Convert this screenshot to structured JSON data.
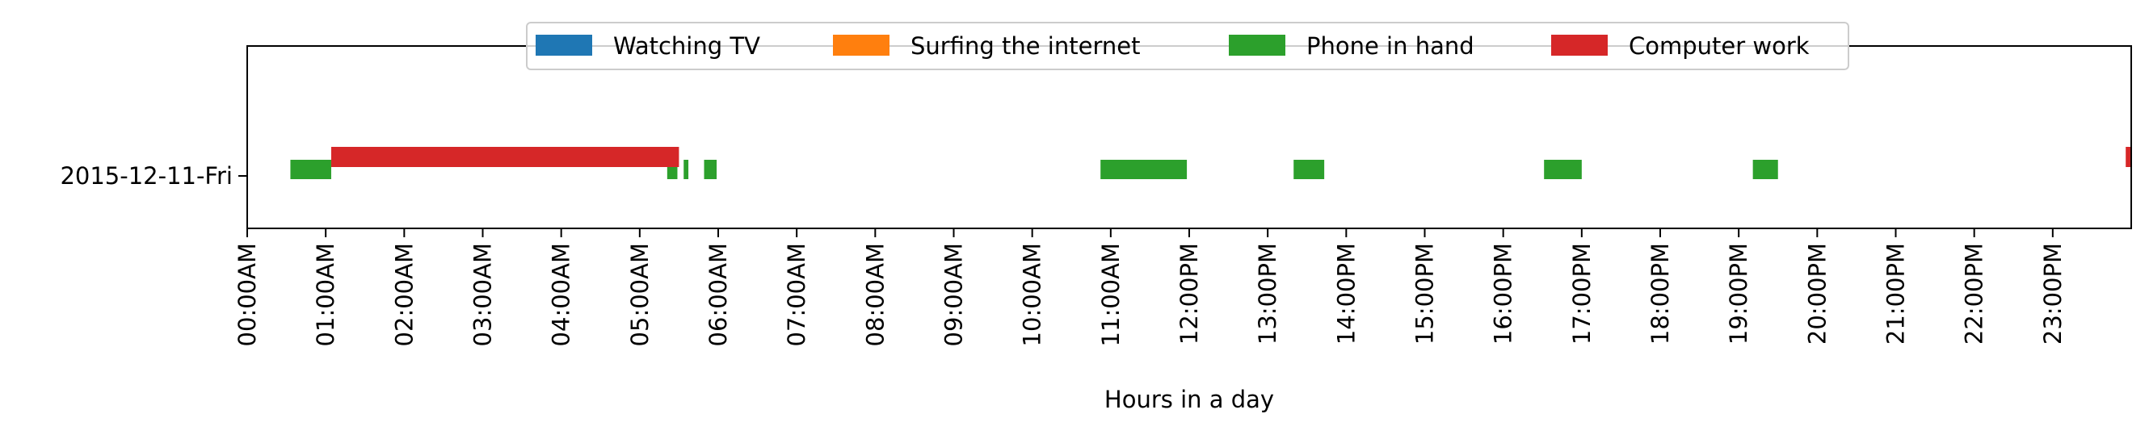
{
  "chart_data": {
    "type": "timeline",
    "title": "",
    "xlabel": "Hours in a day",
    "ylabel": "",
    "xlim": [
      0,
      24
    ],
    "x_unit": "hours",
    "categories": [
      "2015-12-11-Fri"
    ],
    "xtick_labels": [
      "00:00AM",
      "01:00AM",
      "02:00AM",
      "03:00AM",
      "04:00AM",
      "05:00AM",
      "06:00AM",
      "07:00AM",
      "08:00AM",
      "09:00AM",
      "10:00AM",
      "11:00AM",
      "12:00PM",
      "13:00PM",
      "14:00PM",
      "15:00PM",
      "16:00PM",
      "17:00PM",
      "18:00PM",
      "19:00PM",
      "20:00PM",
      "21:00PM",
      "22:00PM",
      "23:00PM"
    ],
    "grid": false,
    "legend_placement": "top-center",
    "series": [
      {
        "name": "Watching TV",
        "color": "#1f77b4",
        "lane": "low",
        "segments": []
      },
      {
        "name": "Surfing the internet",
        "color": "#ff7f0e",
        "lane": "low",
        "segments": []
      },
      {
        "name": "Phone in hand",
        "color": "#2ca02c",
        "lane": "low",
        "segments": [
          [
            0.55,
            1.07
          ],
          [
            5.35,
            5.48
          ],
          [
            5.56,
            5.62
          ],
          [
            5.82,
            5.98
          ],
          [
            10.87,
            11.97
          ],
          [
            13.33,
            13.72
          ],
          [
            16.52,
            17.0
          ],
          [
            19.18,
            19.5
          ]
        ]
      },
      {
        "name": "Computer work",
        "color": "#d62728",
        "lane": "high",
        "segments": [
          [
            1.07,
            5.5
          ],
          [
            23.93,
            24.0
          ]
        ]
      }
    ]
  }
}
